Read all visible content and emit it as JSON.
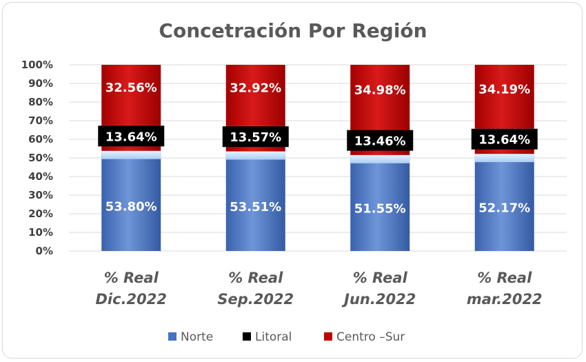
{
  "chart_data": {
    "type": "bar",
    "stacked": true,
    "title": "Concetración Por Región",
    "categories": [
      [
        "% Real",
        "Dic.2022"
      ],
      [
        "% Real",
        "Sep.2022"
      ],
      [
        "% Real",
        "Jun.2022"
      ],
      [
        "% Real",
        "mar.2022"
      ]
    ],
    "series": [
      {
        "name": "Norte",
        "values": [
          53.8,
          53.51,
          51.55,
          52.17
        ],
        "labels": [
          "53.80%",
          "53.51%",
          "51.55%",
          "52.17%"
        ],
        "color": "#4472c4"
      },
      {
        "name": "Litoral",
        "values": [
          13.64,
          13.57,
          13.46,
          13.64
        ],
        "labels": [
          "13.64%",
          "13.57%",
          "13.46%",
          "13.64%"
        ],
        "color": "#000000"
      },
      {
        "name": "Centro –Sur",
        "values": [
          32.56,
          32.92,
          34.98,
          34.19
        ],
        "labels": [
          "32.56%",
          "32.92%",
          "34.98%",
          "34.19%"
        ],
        "color": "#c00000"
      }
    ],
    "ylim": [
      0,
      100
    ],
    "yticks": [
      "0%",
      "10%",
      "20%",
      "30%",
      "40%",
      "50%",
      "60%",
      "70%",
      "80%",
      "90%",
      "100%"
    ],
    "grid": true,
    "legend_position": "bottom"
  }
}
